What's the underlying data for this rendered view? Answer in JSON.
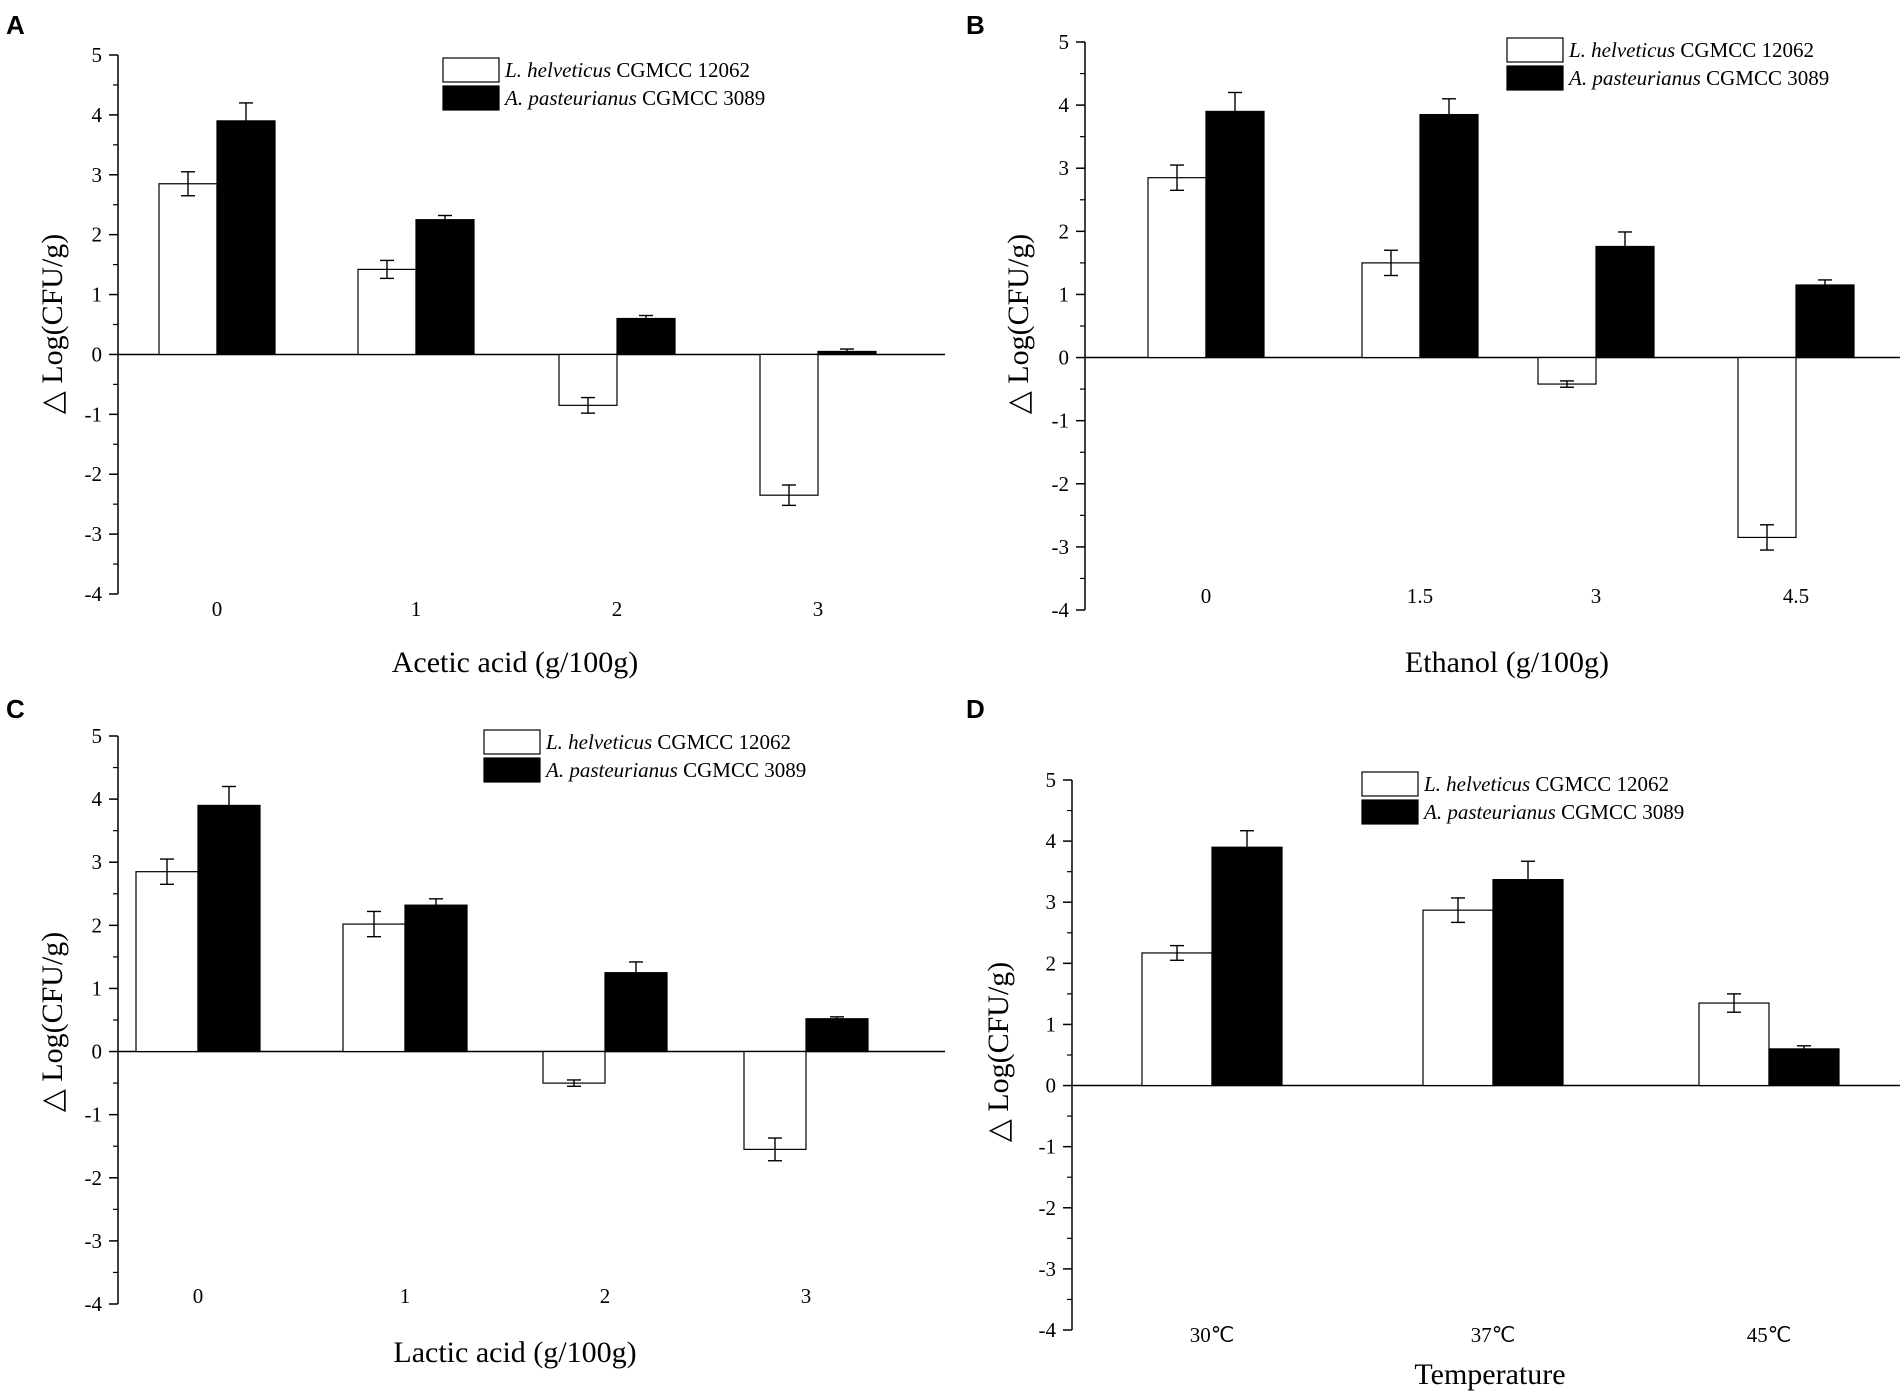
{
  "figure": {
    "colors": {
      "series1_fill": "#ffffff",
      "series2_fill": "#000000",
      "axis": "#000000"
    }
  },
  "chart_data": [
    {
      "panel": "A",
      "type": "bar",
      "categories": [
        "0",
        "1",
        "2",
        "3"
      ],
      "series": [
        {
          "name_italic": "L. helveticus",
          "name_rest": " CGMCC 12062",
          "values": [
            2.85,
            1.42,
            -0.85,
            -2.35
          ],
          "errors": [
            0.2,
            0.15,
            0.13,
            0.17
          ]
        },
        {
          "name_italic": "A. pasteurianus",
          "name_rest": " CGMCC 3089",
          "values": [
            3.9,
            2.25,
            0.6,
            0.05
          ],
          "errors": [
            0.3,
            0.07,
            0.05,
            0.04
          ]
        }
      ],
      "xlabel": "Acetic acid (g/100g)",
      "ylabel": "△ Log(CFU/g)",
      "ylim": [
        -4,
        5
      ],
      "yticks": [
        "5",
        "4",
        "3",
        "2",
        "1",
        "0",
        "-1",
        "-2",
        "-3",
        "-4"
      ],
      "legend": "top-right"
    },
    {
      "panel": "B",
      "type": "bar",
      "categories": [
        "0",
        "1.5",
        "3",
        "4.5"
      ],
      "series": [
        {
          "name_italic": "L. helveticus",
          "name_rest": " CGMCC 12062",
          "values": [
            2.85,
            1.5,
            -0.42,
            -2.85
          ],
          "errors": [
            0.2,
            0.2,
            0.05,
            0.2
          ]
        },
        {
          "name_italic": "A. pasteurianus",
          "name_rest": " CGMCC 3089",
          "values": [
            3.9,
            3.85,
            1.76,
            1.15
          ],
          "errors": [
            0.3,
            0.25,
            0.23,
            0.08
          ]
        }
      ],
      "xlabel": "Ethanol (g/100g)",
      "ylabel": "△ Log(CFU/g)",
      "ylim": [
        -4,
        5
      ],
      "yticks": [
        "5",
        "4",
        "3",
        "2",
        "1",
        "0",
        "-1",
        "-2",
        "-3",
        "-4"
      ],
      "legend": "top-right"
    },
    {
      "panel": "C",
      "type": "bar",
      "categories": [
        "0",
        "1",
        "2",
        "3"
      ],
      "series": [
        {
          "name_italic": "L. helveticus",
          "name_rest": " CGMCC 12062",
          "values": [
            2.85,
            2.02,
            -0.5,
            -1.55
          ],
          "errors": [
            0.2,
            0.2,
            0.05,
            0.18
          ]
        },
        {
          "name_italic": "A. pasteurianus",
          "name_rest": " CGMCC 3089",
          "values": [
            3.9,
            2.32,
            1.25,
            0.52
          ],
          "errors": [
            0.3,
            0.1,
            0.17,
            0.03
          ]
        }
      ],
      "xlabel": "Lactic acid (g/100g)",
      "ylabel": "△ Log(CFU/g)",
      "ylim": [
        -4,
        5
      ],
      "yticks": [
        "5",
        "4",
        "3",
        "2",
        "1",
        "0",
        "-1",
        "-2",
        "-3",
        "-4"
      ],
      "legend": "top-right"
    },
    {
      "panel": "D",
      "type": "bar",
      "categories": [
        "30℃",
        "37℃",
        "45℃"
      ],
      "series": [
        {
          "name_italic": "L. helveticus",
          "name_rest": " CGMCC 12062",
          "values": [
            2.17,
            2.87,
            1.35
          ],
          "errors": [
            0.12,
            0.2,
            0.15
          ]
        },
        {
          "name_italic": "A. pasteurianus",
          "name_rest": " CGMCC 3089",
          "values": [
            3.9,
            3.37,
            0.6
          ],
          "errors": [
            0.27,
            0.3,
            0.05
          ]
        }
      ],
      "xlabel": "Temperature",
      "ylabel": "△ Log(CFU/g)",
      "ylim": [
        -4,
        5
      ],
      "yticks": [
        "5",
        "4",
        "3",
        "2",
        "1",
        "0",
        "-1",
        "-2",
        "-3",
        "-4"
      ],
      "legend": "top-right"
    }
  ]
}
